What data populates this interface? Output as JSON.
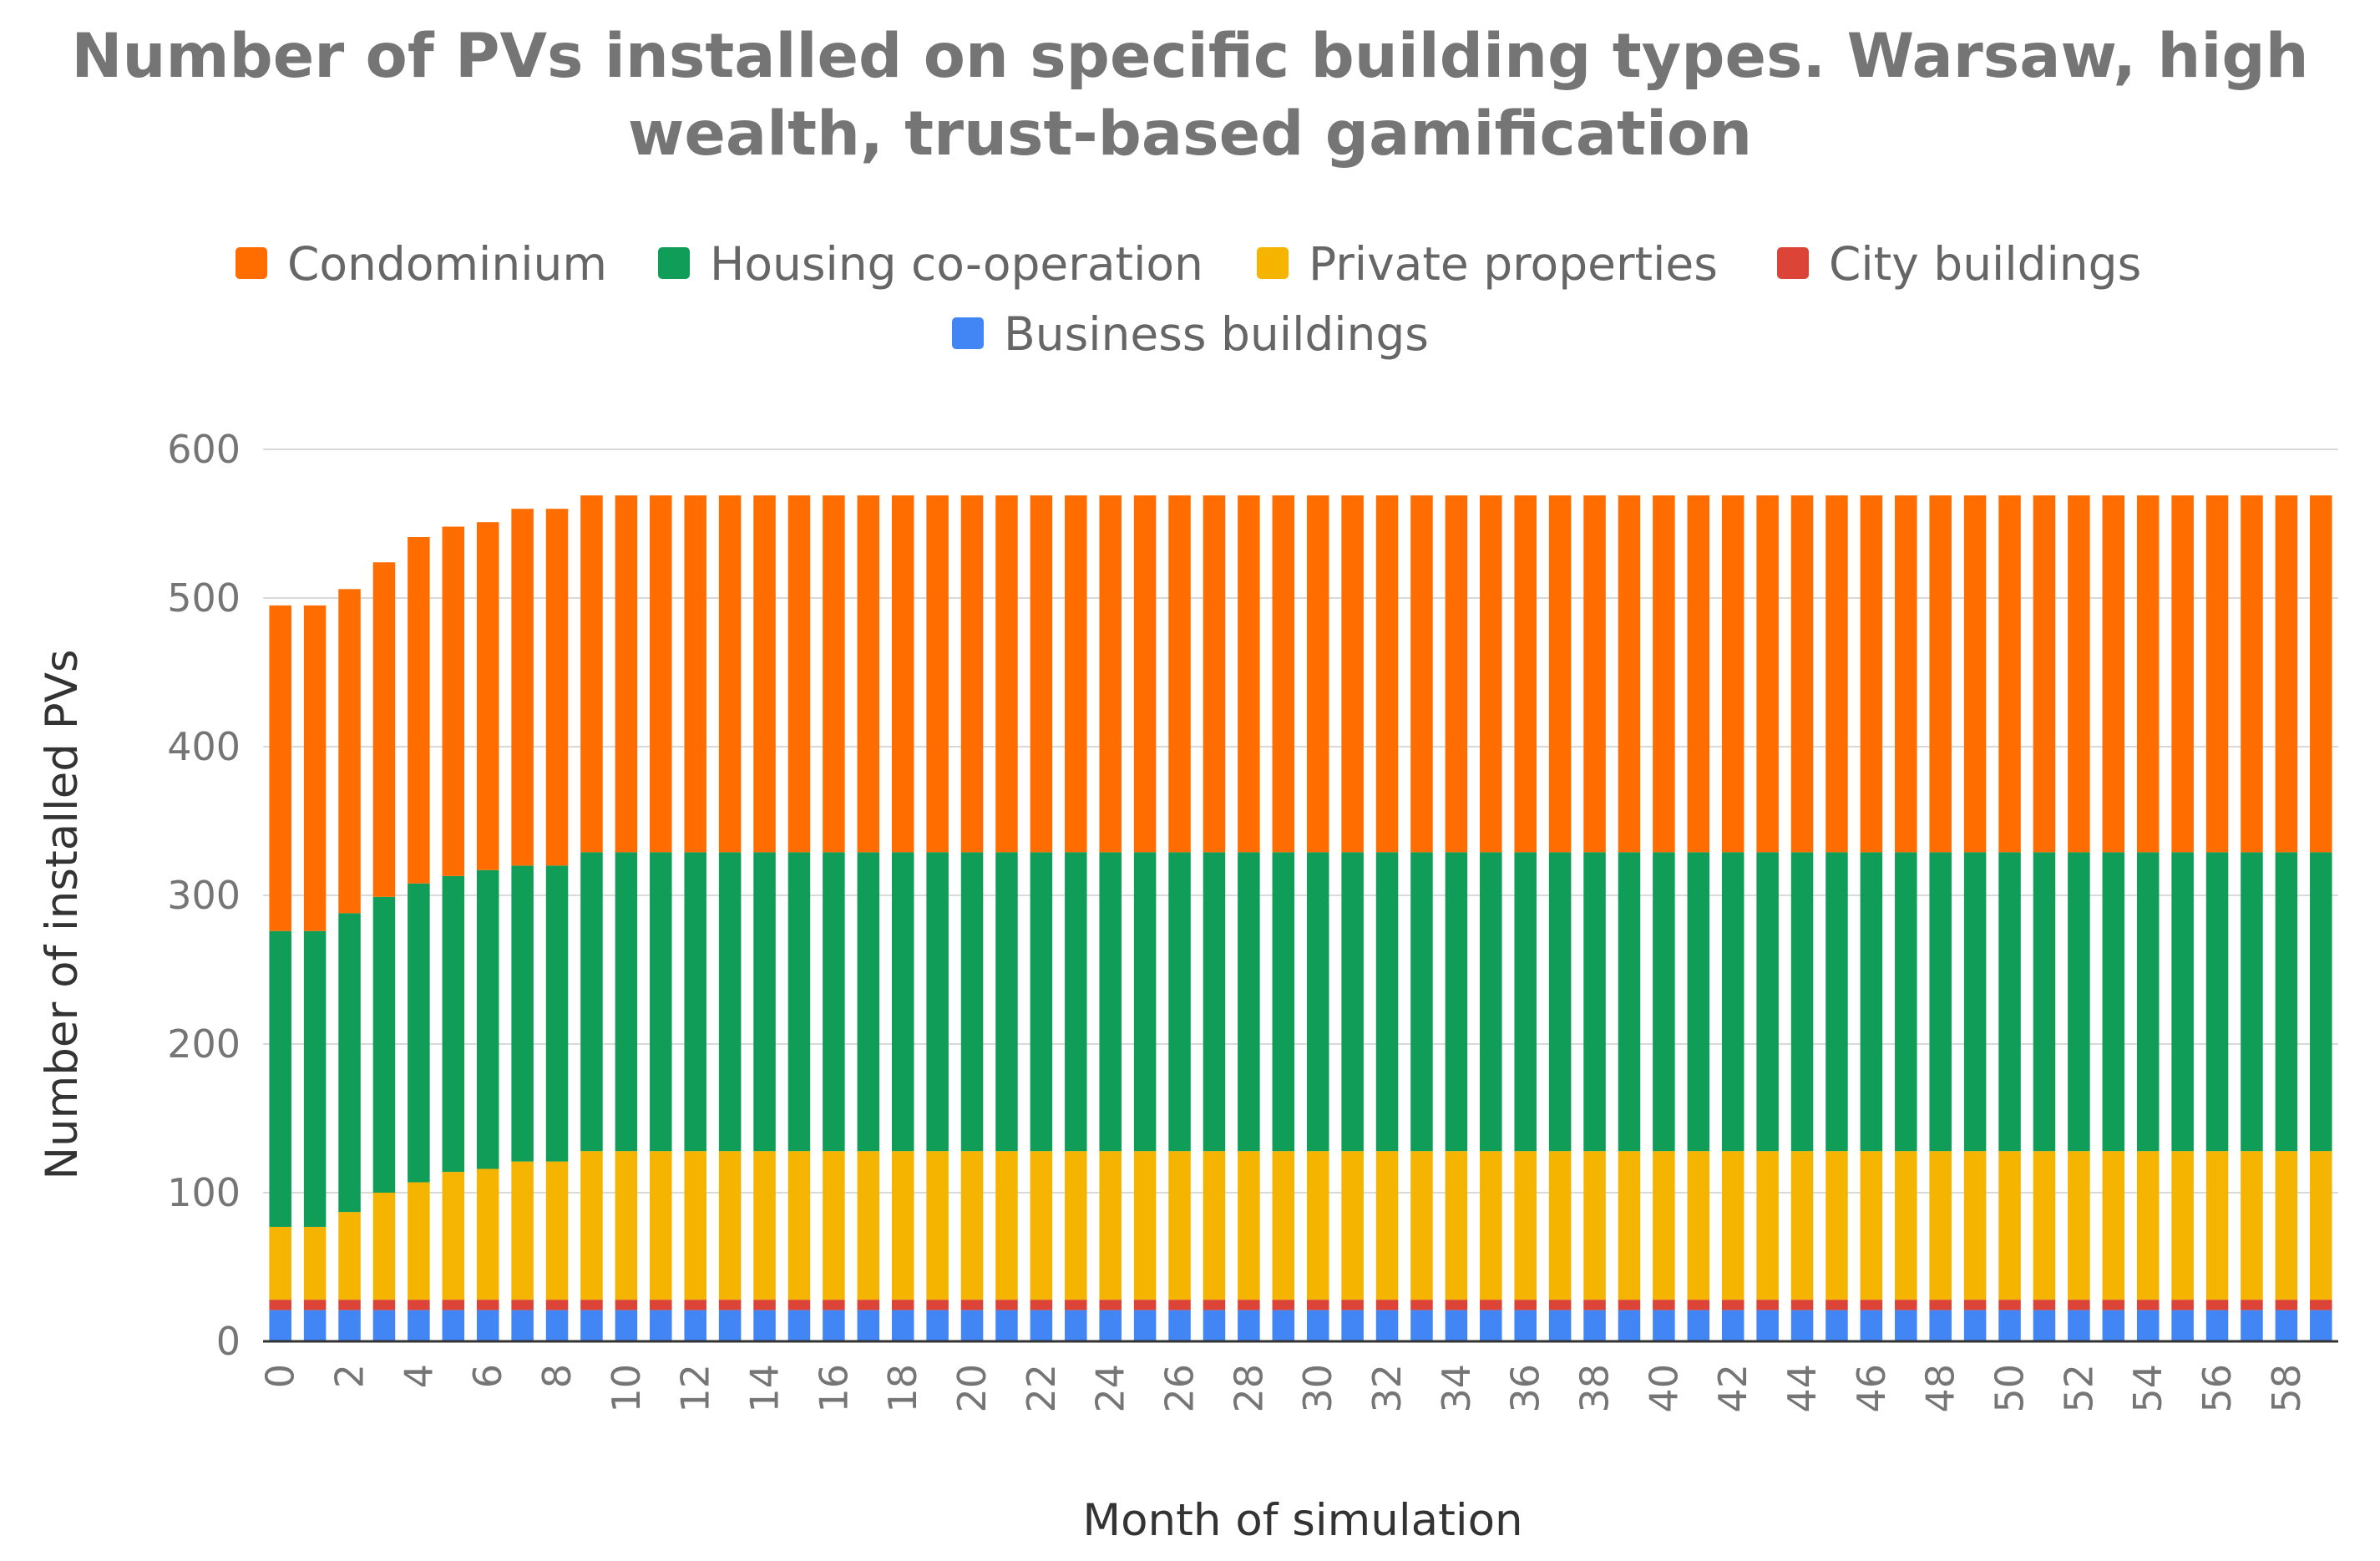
{
  "chart_data": {
    "type": "bar",
    "stacked": true,
    "title_lines": [
      "Number of PVs installed on specific building types. Warsaw, high",
      "wealth, trust-based gamification"
    ],
    "xlabel": "Month of simulation",
    "ylabel": "Number of installed PVs",
    "ylim": [
      0,
      600
    ],
    "yticks": [
      0,
      100,
      200,
      300,
      400,
      500,
      600
    ],
    "grid": true,
    "legend_position": "top",
    "x": [
      0,
      1,
      2,
      3,
      4,
      5,
      6,
      7,
      8,
      9,
      10,
      11,
      12,
      13,
      14,
      15,
      16,
      17,
      18,
      19,
      20,
      21,
      22,
      23,
      24,
      25,
      26,
      27,
      28,
      29,
      30,
      31,
      32,
      33,
      34,
      35,
      36,
      37,
      38,
      39,
      40,
      41,
      42,
      43,
      44,
      45,
      46,
      47,
      48,
      49,
      50,
      51,
      52,
      53,
      54,
      55,
      56,
      57,
      58,
      59
    ],
    "xtick_labels": [
      "0",
      "2",
      "4",
      "6",
      "8",
      "10",
      "12",
      "14",
      "16",
      "18",
      "20",
      "22",
      "24",
      "26",
      "28",
      "30",
      "32",
      "34",
      "36",
      "38",
      "40",
      "42",
      "44",
      "46",
      "48",
      "50",
      "52",
      "54",
      "56",
      "58"
    ],
    "stack_order": [
      "Business buildings",
      "City buildings",
      "Private properties",
      "Housing co-operation",
      "Condominium"
    ],
    "legend_order": [
      "Condominium",
      "Housing co-operation",
      "Private properties",
      "City buildings",
      "Business buildings"
    ],
    "colors": {
      "Condominium": "#ff6d00",
      "Housing co-operation": "#0f9d58",
      "Private properties": "#f4b400",
      "City buildings": "#db4437",
      "Business buildings": "#4285f4"
    },
    "series": [
      {
        "name": "Business buildings",
        "values": [
          21,
          21,
          21,
          21,
          21,
          21,
          21,
          21,
          21,
          21,
          21,
          21,
          21,
          21,
          21,
          21,
          21,
          21,
          21,
          21,
          21,
          21,
          21,
          21,
          21,
          21,
          21,
          21,
          21,
          21,
          21,
          21,
          21,
          21,
          21,
          21,
          21,
          21,
          21,
          21,
          21,
          21,
          21,
          21,
          21,
          21,
          21,
          21,
          21,
          21,
          21,
          21,
          21,
          21,
          21,
          21,
          21,
          21,
          21,
          21
        ]
      },
      {
        "name": "City buildings",
        "values": [
          7,
          7,
          7,
          7,
          7,
          7,
          7,
          7,
          7,
          7,
          7,
          7,
          7,
          7,
          7,
          7,
          7,
          7,
          7,
          7,
          7,
          7,
          7,
          7,
          7,
          7,
          7,
          7,
          7,
          7,
          7,
          7,
          7,
          7,
          7,
          7,
          7,
          7,
          7,
          7,
          7,
          7,
          7,
          7,
          7,
          7,
          7,
          7,
          7,
          7,
          7,
          7,
          7,
          7,
          7,
          7,
          7,
          7,
          7,
          7
        ]
      },
      {
        "name": "Private properties",
        "values": [
          49,
          49,
          59,
          72,
          79,
          86,
          88,
          93,
          93,
          100,
          100,
          100,
          100,
          100,
          100,
          100,
          100,
          100,
          100,
          100,
          100,
          100,
          100,
          100,
          100,
          100,
          100,
          100,
          100,
          100,
          100,
          100,
          100,
          100,
          100,
          100,
          100,
          100,
          100,
          100,
          100,
          100,
          100,
          100,
          100,
          100,
          100,
          100,
          100,
          100,
          100,
          100,
          100,
          100,
          100,
          100,
          100,
          100,
          100,
          100
        ]
      },
      {
        "name": "Housing co-operation",
        "values": [
          199,
          199,
          201,
          199,
          201,
          199,
          201,
          199,
          199,
          201,
          201,
          201,
          201,
          201,
          201,
          201,
          201,
          201,
          201,
          201,
          201,
          201,
          201,
          201,
          201,
          201,
          201,
          201,
          201,
          201,
          201,
          201,
          201,
          201,
          201,
          201,
          201,
          201,
          201,
          201,
          201,
          201,
          201,
          201,
          201,
          201,
          201,
          201,
          201,
          201,
          201,
          201,
          201,
          201,
          201,
          201,
          201,
          201,
          201,
          201
        ]
      },
      {
        "name": "Condominium",
        "values": [
          219,
          219,
          218,
          225,
          233,
          235,
          234,
          240,
          240,
          240,
          240,
          240,
          240,
          240,
          240,
          240,
          240,
          240,
          240,
          240,
          240,
          240,
          240,
          240,
          240,
          240,
          240,
          240,
          240,
          240,
          240,
          240,
          240,
          240,
          240,
          240,
          240,
          240,
          240,
          240,
          240,
          240,
          240,
          240,
          240,
          240,
          240,
          240,
          240,
          240,
          240,
          240,
          240,
          240,
          240,
          240,
          240,
          240,
          240,
          240
        ]
      }
    ]
  }
}
